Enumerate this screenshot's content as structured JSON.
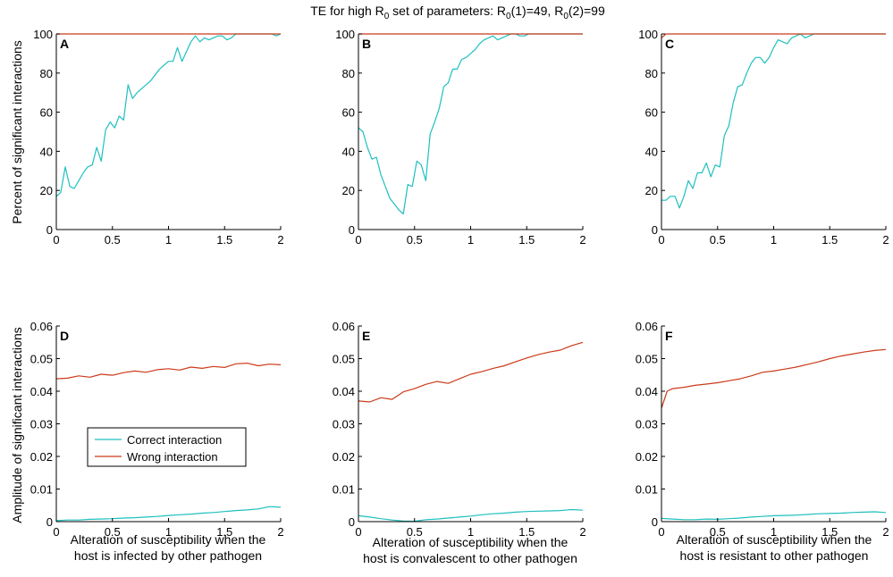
{
  "title_parts": {
    "prefix": "TE for high R",
    "sub0": "0",
    "mid1": " set of parameters: R",
    "sub1": "0",
    "mid2": "(1)=49, R",
    "sub2": "0",
    "suffix": "(2)=99"
  },
  "colors": {
    "correct": "#1fbfbf",
    "wrong": "#cc3a1a"
  },
  "legend": {
    "correct": "Correct interaction",
    "wrong": "Wrong interaction"
  },
  "row_ylabels": [
    "Percent of significant interactions",
    "Amplitude of significant interactions"
  ],
  "col_xlabels": [
    [
      "Alteration of susceptibility when the",
      "host is infected by other pathogen"
    ],
    [
      "Alteration of susceptibility when the",
      "host is convalescent to other pathogen"
    ],
    [
      "Alteration of susceptibility when the",
      "host is resistant to other pathogen"
    ]
  ],
  "chart_data": [
    {
      "type": "line",
      "panel": "A",
      "xlim": [
        0,
        2
      ],
      "ylim": [
        0,
        100
      ],
      "xticks": [
        "0",
        "0.5",
        "1",
        "1.5",
        "2"
      ],
      "yticks": [
        "0",
        "20",
        "40",
        "60",
        "80",
        "100"
      ],
      "series": [
        {
          "key": "correct",
          "x": [
            0,
            0.04,
            0.08,
            0.12,
            0.16,
            0.2,
            0.24,
            0.28,
            0.32,
            0.36,
            0.4,
            0.44,
            0.48,
            0.52,
            0.56,
            0.6,
            0.64,
            0.68,
            0.72,
            0.76,
            0.8,
            0.84,
            0.88,
            0.92,
            0.96,
            1.0,
            1.04,
            1.08,
            1.12,
            1.16,
            1.2,
            1.24,
            1.28,
            1.32,
            1.36,
            1.4,
            1.44,
            1.48,
            1.52,
            1.56,
            1.6,
            1.64,
            1.68,
            1.72,
            1.76,
            1.8,
            1.84,
            1.88,
            1.92,
            1.96,
            2.0
          ],
          "y": [
            17,
            19,
            32,
            22,
            21,
            25,
            29,
            32,
            33,
            42,
            35,
            51,
            55,
            52,
            58,
            56,
            74,
            67,
            70,
            72,
            74,
            76,
            79,
            82,
            84,
            86,
            86,
            93,
            86,
            91,
            96,
            99,
            96,
            98,
            97,
            98,
            99,
            99,
            97,
            98,
            100,
            100,
            100,
            100,
            100,
            100,
            100,
            100,
            100,
            99,
            100
          ]
        },
        {
          "key": "wrong",
          "x": [
            0,
            2
          ],
          "y": [
            100,
            100
          ]
        }
      ]
    },
    {
      "type": "line",
      "panel": "B",
      "xlim": [
        0,
        2
      ],
      "ylim": [
        0,
        100
      ],
      "xticks": [
        "0",
        "0.5",
        "1",
        "1.5",
        "2"
      ],
      "yticks": [
        "0",
        "20",
        "40",
        "60",
        "80",
        "100"
      ],
      "series": [
        {
          "key": "correct",
          "x": [
            0,
            0.04,
            0.08,
            0.12,
            0.16,
            0.2,
            0.24,
            0.28,
            0.32,
            0.36,
            0.4,
            0.44,
            0.48,
            0.52,
            0.56,
            0.6,
            0.64,
            0.68,
            0.72,
            0.76,
            0.8,
            0.84,
            0.88,
            0.92,
            0.96,
            1.0,
            1.04,
            1.08,
            1.12,
            1.16,
            1.2,
            1.24,
            1.28,
            1.32,
            1.36,
            1.4,
            1.44,
            1.48,
            1.52,
            1.56,
            1.6,
            1.64,
            1.68,
            1.72,
            1.76,
            1.8,
            1.84,
            1.88,
            1.92,
            1.96,
            2.0
          ],
          "y": [
            52,
            50,
            42,
            36,
            37,
            28,
            22,
            16,
            13,
            10,
            8,
            23,
            22,
            35,
            33,
            25,
            49,
            55,
            62,
            73,
            75,
            82,
            82,
            87,
            88,
            90,
            92,
            95,
            97,
            98,
            99,
            97,
            98,
            99,
            100,
            100,
            99,
            99,
            100,
            100,
            100,
            100,
            100,
            100,
            100,
            100,
            100,
            100,
            100,
            100,
            100
          ]
        },
        {
          "key": "wrong",
          "x": [
            0,
            2
          ],
          "y": [
            100,
            100
          ]
        }
      ]
    },
    {
      "type": "line",
      "panel": "C",
      "xlim": [
        0,
        2
      ],
      "ylim": [
        0,
        100
      ],
      "xticks": [
        "0",
        "0.5",
        "1",
        "1.5",
        "2"
      ],
      "yticks": [
        "0",
        "20",
        "40",
        "60",
        "80",
        "100"
      ],
      "series": [
        {
          "key": "correct",
          "x": [
            0,
            0.04,
            0.08,
            0.12,
            0.16,
            0.2,
            0.24,
            0.28,
            0.32,
            0.36,
            0.4,
            0.44,
            0.48,
            0.52,
            0.56,
            0.6,
            0.64,
            0.68,
            0.72,
            0.76,
            0.8,
            0.84,
            0.88,
            0.92,
            0.96,
            1.0,
            1.04,
            1.08,
            1.12,
            1.16,
            1.2,
            1.24,
            1.28,
            1.32,
            1.36,
            1.4,
            1.44,
            1.48,
            1.52,
            1.56,
            1.6,
            1.64,
            1.68,
            1.72,
            1.76,
            1.8,
            1.84,
            1.88,
            1.92,
            1.96,
            2.0
          ],
          "y": [
            15,
            15,
            17,
            17,
            11,
            17,
            25,
            21,
            29,
            29,
            34,
            27,
            33,
            32,
            48,
            53,
            65,
            73,
            74,
            80,
            85,
            88,
            88,
            85,
            88,
            93,
            97,
            96,
            95,
            98,
            99,
            100,
            98,
            99,
            100,
            100,
            100,
            100,
            100,
            100,
            100,
            100,
            100,
            100,
            100,
            100,
            100,
            100,
            100,
            100,
            100
          ]
        },
        {
          "key": "wrong",
          "x": [
            0,
            0.04,
            0.08,
            2
          ],
          "y": [
            98,
            100,
            100,
            100
          ]
        }
      ]
    },
    {
      "type": "line",
      "panel": "D",
      "xlim": [
        0,
        2
      ],
      "ylim": [
        0,
        0.06
      ],
      "xticks": [
        "0",
        "0.5",
        "1",
        "1.5",
        "2"
      ],
      "yticks": [
        "0",
        "0.01",
        "0.02",
        "0.03",
        "0.04",
        "0.05",
        "0.06"
      ],
      "series": [
        {
          "key": "correct",
          "x": [
            0,
            0.1,
            0.2,
            0.3,
            0.4,
            0.5,
            0.6,
            0.7,
            0.8,
            0.9,
            1.0,
            1.1,
            1.2,
            1.3,
            1.4,
            1.5,
            1.6,
            1.7,
            1.8,
            1.9,
            2.0
          ],
          "y": [
            0.0003,
            0.0005,
            0.0005,
            0.0007,
            0.0008,
            0.0009,
            0.0011,
            0.0012,
            0.0014,
            0.0016,
            0.0019,
            0.0021,
            0.0023,
            0.0026,
            0.0028,
            0.0031,
            0.0034,
            0.0036,
            0.0039,
            0.0046,
            0.0044
          ]
        },
        {
          "key": "wrong",
          "x": [
            0,
            0.1,
            0.2,
            0.3,
            0.4,
            0.5,
            0.6,
            0.7,
            0.8,
            0.9,
            1.0,
            1.1,
            1.2,
            1.3,
            1.4,
            1.5,
            1.6,
            1.7,
            1.8,
            1.9,
            2.0
          ],
          "y": [
            0.0438,
            0.044,
            0.0447,
            0.0443,
            0.0452,
            0.0449,
            0.0457,
            0.0462,
            0.0458,
            0.0466,
            0.0469,
            0.0465,
            0.0474,
            0.047,
            0.0476,
            0.0473,
            0.0484,
            0.0486,
            0.0478,
            0.0483,
            0.0481
          ]
        }
      ]
    },
    {
      "type": "line",
      "panel": "E",
      "xlim": [
        0,
        2
      ],
      "ylim": [
        0,
        0.06
      ],
      "xticks": [
        "0",
        "0.5",
        "1",
        "1.5",
        "2"
      ],
      "yticks": [
        "0",
        "0.01",
        "0.02",
        "0.03",
        "0.04",
        "0.05",
        "0.06"
      ],
      "series": [
        {
          "key": "correct",
          "x": [
            0,
            0.1,
            0.2,
            0.3,
            0.4,
            0.5,
            0.6,
            0.7,
            0.8,
            0.9,
            1.0,
            1.1,
            1.2,
            1.3,
            1.4,
            1.5,
            1.6,
            1.7,
            1.8,
            1.9,
            2.0
          ],
          "y": [
            0.0018,
            0.0014,
            0.0009,
            0.0005,
            0.0002,
            0.0001,
            0.0006,
            0.0008,
            0.0011,
            0.0014,
            0.0017,
            0.0021,
            0.0024,
            0.0026,
            0.0029,
            0.0031,
            0.0032,
            0.0033,
            0.0034,
            0.0037,
            0.0035
          ]
        },
        {
          "key": "wrong",
          "x": [
            0,
            0.1,
            0.2,
            0.3,
            0.4,
            0.5,
            0.6,
            0.7,
            0.8,
            0.9,
            1.0,
            1.1,
            1.2,
            1.3,
            1.4,
            1.5,
            1.6,
            1.7,
            1.8,
            1.9,
            2.0
          ],
          "y": [
            0.037,
            0.0367,
            0.038,
            0.0375,
            0.0398,
            0.0408,
            0.0421,
            0.043,
            0.0424,
            0.0438,
            0.0452,
            0.046,
            0.047,
            0.0478,
            0.049,
            0.0502,
            0.0512,
            0.052,
            0.0526,
            0.054,
            0.055
          ]
        }
      ]
    },
    {
      "type": "line",
      "panel": "F",
      "xlim": [
        0,
        2
      ],
      "ylim": [
        0,
        0.06
      ],
      "xticks": [
        "0",
        "0.5",
        "1",
        "1.5",
        "2"
      ],
      "yticks": [
        "0",
        "0.01",
        "0.02",
        "0.03",
        "0.04",
        "0.05",
        "0.06"
      ],
      "series": [
        {
          "key": "correct",
          "x": [
            0,
            0.1,
            0.2,
            0.3,
            0.4,
            0.5,
            0.6,
            0.7,
            0.8,
            0.9,
            1.0,
            1.1,
            1.2,
            1.3,
            1.4,
            1.5,
            1.6,
            1.7,
            1.8,
            1.9,
            2.0
          ],
          "y": [
            0.001,
            0.0008,
            0.0006,
            0.0006,
            0.0008,
            0.0007,
            0.0009,
            0.0011,
            0.0014,
            0.0016,
            0.0018,
            0.0019,
            0.002,
            0.0022,
            0.0024,
            0.0025,
            0.0026,
            0.0028,
            0.0029,
            0.003,
            0.0028
          ]
        },
        {
          "key": "wrong",
          "x": [
            0,
            0.05,
            0.1,
            0.2,
            0.3,
            0.4,
            0.5,
            0.6,
            0.7,
            0.8,
            0.9,
            1.0,
            1.1,
            1.2,
            1.3,
            1.4,
            1.5,
            1.6,
            1.7,
            1.8,
            1.9,
            2.0
          ],
          "y": [
            0.0348,
            0.04,
            0.0408,
            0.0412,
            0.0418,
            0.0422,
            0.0426,
            0.0432,
            0.0438,
            0.0447,
            0.0458,
            0.0462,
            0.0468,
            0.0474,
            0.0482,
            0.049,
            0.05,
            0.0508,
            0.0514,
            0.052,
            0.0525,
            0.0528
          ]
        }
      ]
    }
  ]
}
